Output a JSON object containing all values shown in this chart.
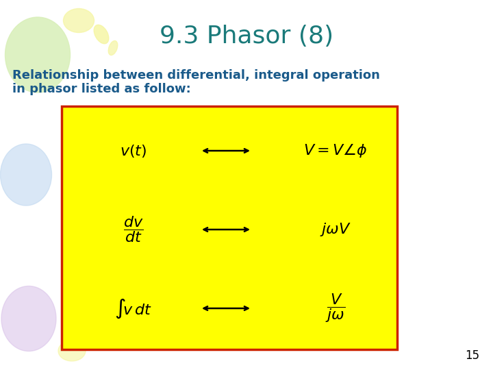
{
  "title": "9.3 Phasor (8)",
  "title_color": "#1a7a7a",
  "subtitle_line1": "Relationship between differential, integral operation",
  "subtitle_line2": "in phasor listed as follow:",
  "subtitle_color": "#1a5a8a",
  "background_color": "#ffffff",
  "box_bg_color": "#ffff00",
  "box_border_color": "#cc2200",
  "page_number": "15",
  "balloon_green_color": "#d8efb8",
  "balloon_yellow_color": "#f5f5a0",
  "balloon_blue_color": "#c0d8f0",
  "balloon_purple_color": "#d8c0e8"
}
